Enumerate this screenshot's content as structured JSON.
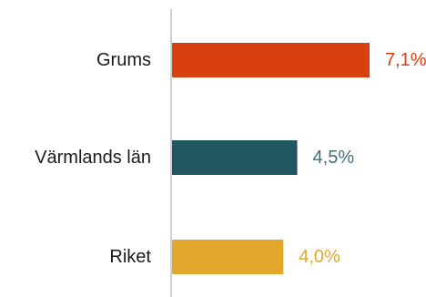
{
  "chart_data": {
    "type": "bar",
    "orientation": "horizontal",
    "title": "",
    "xlabel": "",
    "ylabel": "",
    "categories": [
      "Grums",
      "Värmlands län",
      "Riket"
    ],
    "values": [
      7.1,
      4.5,
      4.0
    ],
    "value_labels": [
      "7,1%",
      "4,5%",
      "4,0%"
    ],
    "colors": [
      "#d9400f",
      "#1f565f",
      "#e3a82b"
    ],
    "label_colors": [
      "#d9400f",
      "#3f6f7a",
      "#e3a82b"
    ],
    "axis_color": "#d0d0d0",
    "xlim": [
      0,
      7.1
    ],
    "grid": false,
    "legend": "none"
  }
}
